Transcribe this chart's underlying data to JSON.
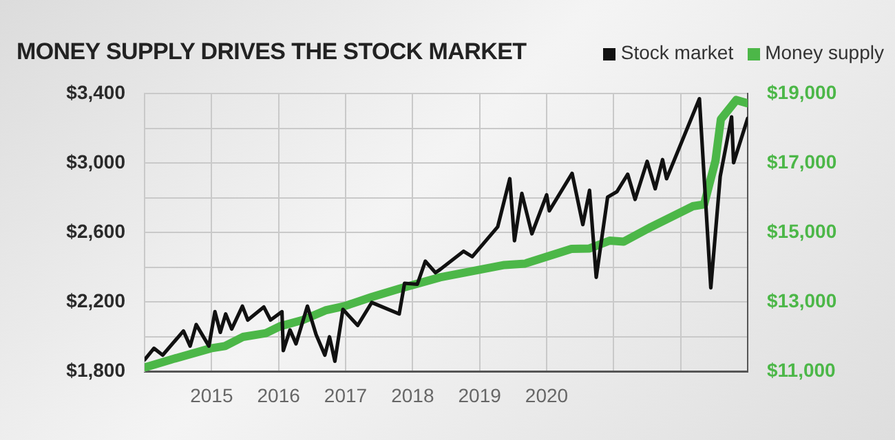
{
  "chart_data": {
    "type": "line",
    "title": "MONEY SUPPLY DRIVES THE STOCK MARKET",
    "legend": "top right",
    "grid": true,
    "marker": "none",
    "line_style": "solid",
    "xlim": [
      2014,
      2023
    ],
    "xticks": [
      2015,
      2016,
      2017,
      2018,
      2019,
      2020,
      {
        "value": 2021,
        "label": null
      },
      {
        "value": 2022,
        "label": null
      }
    ],
    "ylim": [
      1800,
      3400
    ],
    "yticks": [
      {
        "value": 1800,
        "label": "$1,800"
      },
      {
        "value": 2000,
        "label": null
      },
      {
        "value": 2200,
        "label": "$2,200"
      },
      {
        "value": 2400,
        "label": null
      },
      {
        "value": 2600,
        "label": "$2,600"
      },
      {
        "value": 2800,
        "label": null
      },
      {
        "value": 3000,
        "label": "$3,000"
      },
      {
        "value": 3200,
        "label": null
      },
      {
        "value": 3400,
        "label": "$3,400"
      }
    ],
    "y2lim": [
      11000,
      19000
    ],
    "y2ticks": [
      {
        "value": 11000,
        "label": "$11,000"
      },
      {
        "value": 13000,
        "label": "$13,000"
      },
      {
        "value": 15000,
        "label": "$15,000"
      },
      {
        "value": 17000,
        "label": "$17,000"
      },
      {
        "value": 19000,
        "label": "$19,000"
      }
    ],
    "series": [
      {
        "name": "Stock market",
        "color": "#111111",
        "x": [
          2014.0,
          2014.14,
          2014.27,
          2014.58,
          2014.68,
          2014.77,
          2014.96,
          2015.05,
          2015.13,
          2015.21,
          2015.3,
          2015.46,
          2015.54,
          2015.78,
          2015.88,
          2016.05,
          2016.07,
          2016.17,
          2016.26,
          2016.43,
          2016.56,
          2016.69,
          2016.76,
          2016.84,
          2016.96,
          2017.18,
          2017.39,
          2017.8,
          2017.88,
          2018.07,
          2018.19,
          2018.34,
          2018.41,
          2018.76,
          2018.89,
          2019.27,
          2019.45,
          2019.52,
          2019.63,
          2019.78,
          2020.0,
          2020.04,
          2020.38,
          2020.54,
          2020.64,
          2020.74,
          2020.91,
          2021.05,
          2021.21,
          2021.32,
          2021.5,
          2021.62,
          2021.73,
          2021.79,
          2022.28,
          2022.45,
          2022.59,
          2022.76,
          2022.79,
          2023.0
        ],
        "values": [
          1866,
          1932,
          1893,
          2032,
          1945,
          2069,
          1945,
          2143,
          2024,
          2130,
          2043,
          2175,
          2095,
          2170,
          2095,
          2143,
          1919,
          2038,
          1958,
          2175,
          2011,
          1893,
          1998,
          1858,
          2156,
          2064,
          2196,
          2130,
          2307,
          2301,
          2434,
          2368,
          2386,
          2491,
          2460,
          2632,
          2909,
          2552,
          2824,
          2592,
          2816,
          2724,
          2940,
          2645,
          2842,
          2341,
          2803,
          2835,
          2935,
          2790,
          3009,
          2851,
          3019,
          2909,
          3370,
          2281,
          2922,
          3265,
          3001,
          3257
        ]
      },
      {
        "name": "Money supply",
        "color": "#4cb748",
        "axis": "y2",
        "x": [
          2014.0,
          2014.38,
          2014.99,
          2015.2,
          2015.47,
          2015.81,
          2016.02,
          2016.36,
          2016.7,
          2016.98,
          2017.39,
          2017.8,
          2018.41,
          2019.37,
          2019.68,
          2020.37,
          2020.64,
          2020.94,
          2021.15,
          2021.56,
          2022.18,
          2022.35,
          2022.52,
          2022.6,
          2022.83,
          2022.99
        ],
        "values": [
          11107,
          11329,
          11661,
          11725,
          11990,
          12097,
          12295,
          12477,
          12754,
          12873,
          13138,
          13376,
          13705,
          14061,
          14101,
          14524,
          14536,
          14762,
          14734,
          15158,
          15752,
          15804,
          17071,
          18259,
          18814,
          18722
        ]
      }
    ]
  }
}
